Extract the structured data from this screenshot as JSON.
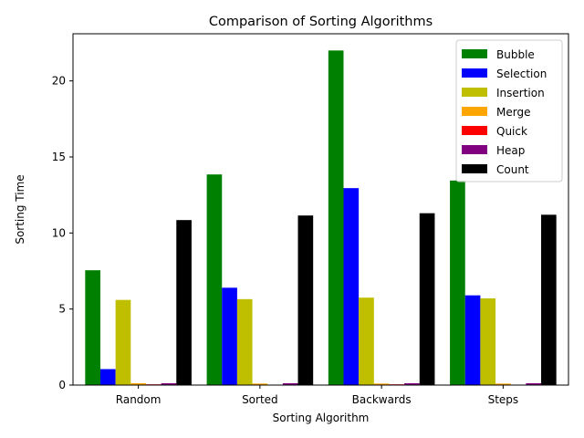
{
  "chart_data": {
    "type": "bar",
    "title": "Comparison of Sorting Algorithms",
    "xlabel": "Sorting Algorithm",
    "ylabel": "Sorting Time",
    "categories": [
      "Random",
      "Sorted",
      "Backwards",
      "Steps"
    ],
    "ylim": [
      0,
      23.1
    ],
    "yticks": [
      0,
      5,
      10,
      15,
      20
    ],
    "grid": false,
    "legend_position": "top-right",
    "series": [
      {
        "name": "Bubble",
        "color": "#008000",
        "values": [
          7.55,
          13.85,
          22.0,
          13.45
        ]
      },
      {
        "name": "Selection",
        "color": "#0000ff",
        "values": [
          1.05,
          6.4,
          12.95,
          5.9
        ]
      },
      {
        "name": "Insertion",
        "color": "#bfbf00",
        "values": [
          5.6,
          5.65,
          5.75,
          5.7
        ]
      },
      {
        "name": "Merge",
        "color": "#ffa500",
        "values": [
          0.12,
          0.1,
          0.1,
          0.1
        ]
      },
      {
        "name": "Quick",
        "color": "#ff0000",
        "values": [
          0.05,
          0.02,
          0.05,
          0.02
        ]
      },
      {
        "name": "Heap",
        "color": "#800080",
        "values": [
          0.12,
          0.12,
          0.12,
          0.12
        ]
      },
      {
        "name": "Count",
        "color": "#000000",
        "values": [
          10.85,
          11.15,
          11.3,
          11.2
        ]
      }
    ]
  }
}
